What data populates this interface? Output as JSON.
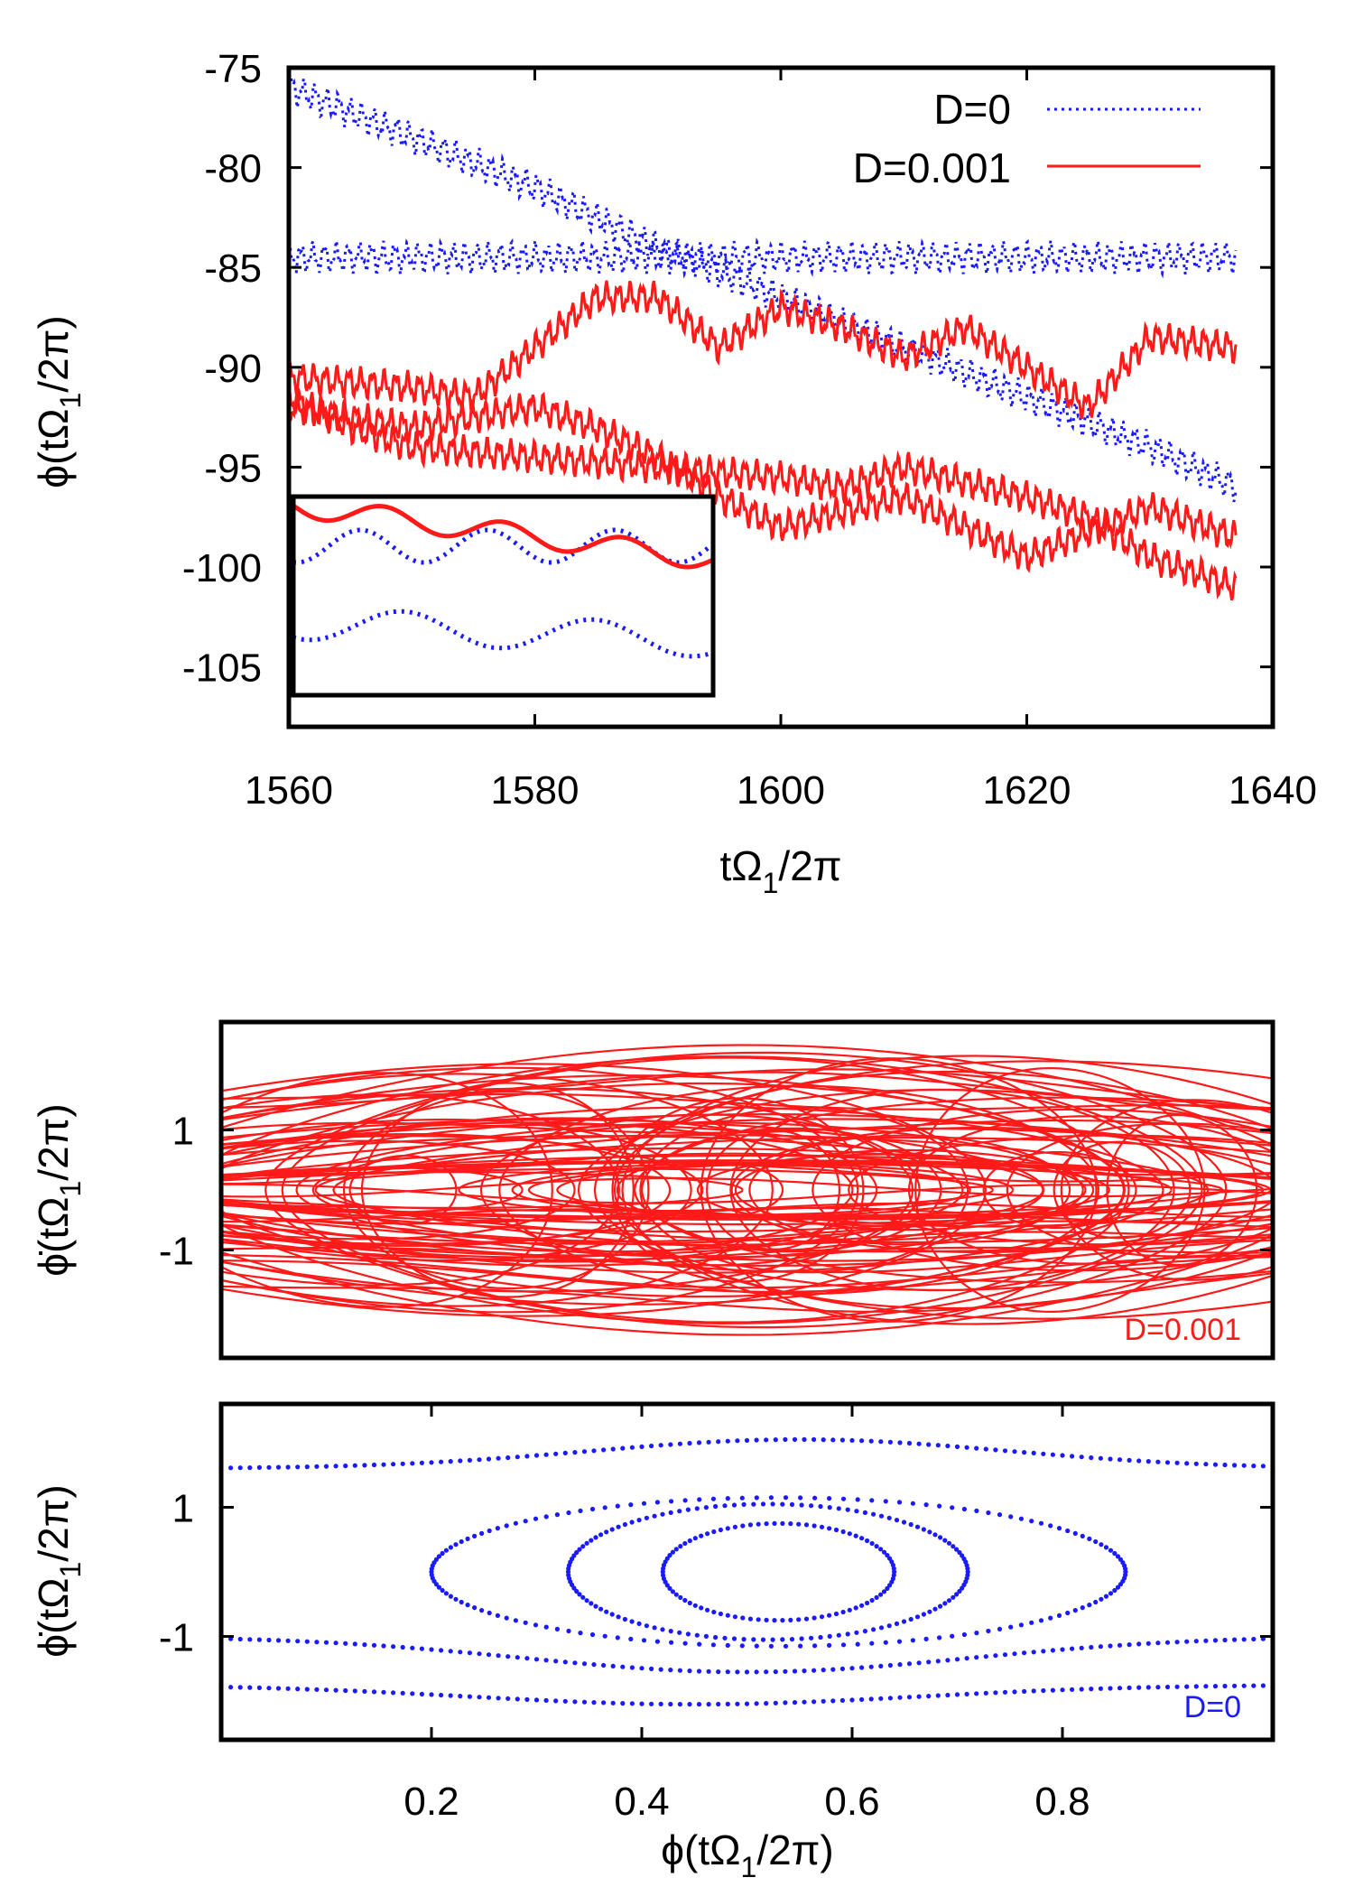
{
  "chart_data": [
    {
      "type": "line",
      "xlabel": "tΩ1/2π",
      "ylabel": "ϕ(tΩ1/2π)",
      "xlim": [
        1560,
        1640
      ],
      "ylim": [
        -108,
        -75
      ],
      "xticks": [
        "1560",
        "1580",
        "1600",
        "1620",
        "1640"
      ],
      "yticks": [
        "-75",
        "-80",
        "-85",
        "-90",
        "-95",
        "-100",
        "-105"
      ],
      "legend_position": "top-right",
      "series": [
        {
          "name": "D=0",
          "style": "dotted",
          "color": "#1a1aff",
          "trajectories": [
            {
              "x": [
                1560,
                1570,
                1580,
                1590,
                1600,
                1610,
                1620,
                1630,
                1637
              ],
              "y": [
                -76,
                -78.5,
                -81,
                -84,
                -86.5,
                -89,
                -91.5,
                -94,
                -96
              ]
            },
            {
              "x": [
                1560,
                1637
              ],
              "y": [
                -84.5,
                -84.5
              ]
            }
          ]
        },
        {
          "name": "D=0.001",
          "style": "solid",
          "color": "#ff1a1a",
          "trajectories": [
            {
              "x": [
                1560,
                1570,
                1575,
                1580,
                1585,
                1590,
                1595,
                1600,
                1605,
                1610,
                1615,
                1620,
                1625,
                1630,
                1637
              ],
              "y": [
                -90.5,
                -91,
                -91.5,
                -89,
                -86.5,
                -86.5,
                -89,
                -87,
                -88,
                -89.5,
                -88,
                -90,
                -92,
                -88.5,
                -89
              ]
            },
            {
              "x": [
                1560,
                1565,
                1570,
                1580,
                1590,
                1600,
                1605,
                1610,
                1620,
                1625,
                1630,
                1637
              ],
              "y": [
                -91.5,
                -93,
                -94,
                -94.5,
                -95,
                -95.5,
                -96,
                -95,
                -96.5,
                -97.5,
                -99.5,
                -101
              ]
            },
            {
              "x": [
                1560,
                1565,
                1570,
                1580,
                1585,
                1590,
                1595,
                1600,
                1610,
                1620,
                1630,
                1637
              ],
              "y": [
                -92,
                -92.5,
                -93,
                -92,
                -93,
                -94.5,
                -96.5,
                -98,
                -96.5,
                -99.5,
                -97,
                -98.5
              ]
            }
          ]
        }
      ],
      "inset": {
        "location": "lower-left"
      }
    },
    {
      "type": "line",
      "ylabel": "ϕ̇(tΩ1/2π)",
      "xlim": [
        0,
        1
      ],
      "ylim": [
        -2.8,
        2.8
      ],
      "yticks": [
        "1",
        "-1"
      ],
      "series": [
        {
          "name": "D=0.001",
          "color": "#ff1a1a",
          "style": "solid"
        }
      ],
      "annotation": "D=0.001"
    },
    {
      "type": "scatter",
      "xlabel": "ϕ(tΩ1/2π)",
      "ylabel": "ϕ̇(tΩ1/2π)",
      "xlim": [
        0,
        1
      ],
      "ylim": [
        -2.6,
        2.6
      ],
      "xticks": [
        "0.2",
        "0.4",
        "0.6",
        "0.8"
      ],
      "yticks": [
        "1",
        "-1"
      ],
      "series": [
        {
          "name": "D=0",
          "color": "#1a1aff",
          "style": "dotted"
        }
      ],
      "annotation": "D=0"
    }
  ]
}
